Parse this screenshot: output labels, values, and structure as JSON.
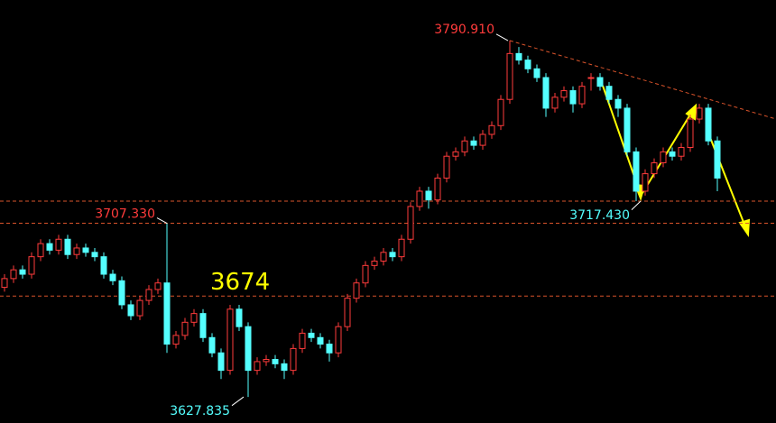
{
  "chart_data": {
    "type": "candlestick",
    "up_color": "#ff3b3b",
    "down_color": "#54ffff",
    "ylim": [
      3615.9,
      3809.5
    ],
    "candles": [
      [
        3678,
        3684,
        3676,
        3682
      ],
      [
        3682,
        3688,
        3680,
        3686
      ],
      [
        3686,
        3688,
        3682,
        3684
      ],
      [
        3684,
        3694,
        3682,
        3692
      ],
      [
        3692,
        3700,
        3690,
        3698
      ],
      [
        3698,
        3700,
        3693,
        3695
      ],
      [
        3695,
        3702,
        3693,
        3700
      ],
      [
        3700,
        3702,
        3691,
        3693
      ],
      [
        3693,
        3698,
        3691,
        3696
      ],
      [
        3696,
        3698,
        3692,
        3694
      ],
      [
        3694,
        3696,
        3690,
        3692
      ],
      [
        3692,
        3694,
        3682,
        3684
      ],
      [
        3684,
        3686,
        3679,
        3681
      ],
      [
        3681,
        3683,
        3668,
        3670
      ],
      [
        3670,
        3672,
        3663,
        3665
      ],
      [
        3665,
        3674,
        3663,
        3672
      ],
      [
        3672,
        3679,
        3670,
        3677
      ],
      [
        3677,
        3682,
        3675,
        3680
      ],
      [
        3680,
        3707.33,
        3648,
        3652
      ],
      [
        3652,
        3658,
        3650,
        3656
      ],
      [
        3656,
        3664,
        3654,
        3662
      ],
      [
        3662,
        3668,
        3660,
        3666
      ],
      [
        3666,
        3668,
        3653,
        3655
      ],
      [
        3655,
        3657,
        3646,
        3648
      ],
      [
        3648,
        3650,
        3636,
        3640
      ],
      [
        3640,
        3670,
        3638,
        3668
      ],
      [
        3668,
        3670,
        3658,
        3660
      ],
      [
        3660,
        3662,
        3627.835,
        3640
      ],
      [
        3640,
        3646,
        3638,
        3644
      ],
      [
        3644,
        3647,
        3642,
        3645
      ],
      [
        3645,
        3647,
        3641,
        3643
      ],
      [
        3643,
        3645,
        3636,
        3640
      ],
      [
        3640,
        3652,
        3638,
        3650
      ],
      [
        3650,
        3659,
        3648,
        3657
      ],
      [
        3657,
        3659,
        3653,
        3655
      ],
      [
        3655,
        3657,
        3650,
        3652
      ],
      [
        3652,
        3654,
        3644,
        3648
      ],
      [
        3648,
        3662,
        3646,
        3660
      ],
      [
        3660,
        3675,
        3658,
        3673
      ],
      [
        3673,
        3682,
        3671,
        3680
      ],
      [
        3680,
        3690,
        3678,
        3688
      ],
      [
        3688,
        3692,
        3686,
        3690
      ],
      [
        3690,
        3696,
        3688,
        3694
      ],
      [
        3694,
        3696,
        3690,
        3692
      ],
      [
        3692,
        3702,
        3690,
        3700
      ],
      [
        3700,
        3717,
        3698,
        3715
      ],
      [
        3715,
        3724,
        3713,
        3722
      ],
      [
        3722,
        3724,
        3714,
        3718
      ],
      [
        3718,
        3730,
        3716,
        3728
      ],
      [
        3728,
        3740,
        3726,
        3738
      ],
      [
        3738,
        3742,
        3736,
        3740
      ],
      [
        3740,
        3747,
        3738,
        3745
      ],
      [
        3745,
        3747,
        3741,
        3743
      ],
      [
        3743,
        3750,
        3741,
        3748
      ],
      [
        3748,
        3754,
        3746,
        3752
      ],
      [
        3752,
        3766,
        3750,
        3764
      ],
      [
        3764,
        3790.91,
        3762,
        3785
      ],
      [
        3785,
        3788,
        3780,
        3782
      ],
      [
        3782,
        3784,
        3776,
        3778
      ],
      [
        3778,
        3780,
        3772,
        3774
      ],
      [
        3774,
        3776,
        3756,
        3760
      ],
      [
        3760,
        3767,
        3758,
        3765
      ],
      [
        3765,
        3770,
        3763,
        3768
      ],
      [
        3768,
        3770,
        3758,
        3762
      ],
      [
        3762,
        3772,
        3760,
        3770
      ],
      [
        3774,
        3776,
        3768,
        3774
      ],
      [
        3774,
        3776,
        3768,
        3770
      ],
      [
        3770,
        3772,
        3762,
        3764
      ],
      [
        3764,
        3766,
        3756,
        3760
      ],
      [
        3760,
        3762,
        3738,
        3740
      ],
      [
        3740,
        3742,
        3717.43,
        3722
      ],
      [
        3722,
        3732,
        3720,
        3730
      ],
      [
        3730,
        3737,
        3728,
        3735
      ],
      [
        3735,
        3742,
        3733,
        3740
      ],
      [
        3740,
        3742,
        3736,
        3738
      ],
      [
        3738,
        3744,
        3736,
        3742
      ],
      [
        3742,
        3757,
        3740,
        3755
      ],
      [
        3755,
        3762,
        3753,
        3760
      ],
      [
        3760,
        3762,
        3743,
        3745
      ],
      [
        3745,
        3747,
        3722,
        3728
      ]
    ],
    "annotations": [
      {
        "label": "3790.910",
        "value": 3790.91,
        "color": "#ff3b3b",
        "hline": false
      },
      {
        "label": "3707.330",
        "value": 3707.33,
        "color": "#ff3b3b",
        "hline": true
      },
      {
        "label": "3717.430",
        "value": 3717.43,
        "color": "#54ffff",
        "hline": true
      },
      {
        "label": "3627.835",
        "value": 3627.835,
        "color": "#54ffff",
        "hline": false
      },
      {
        "label": "3674",
        "value": 3674,
        "color": "#ffff00",
        "hline": true
      }
    ]
  }
}
